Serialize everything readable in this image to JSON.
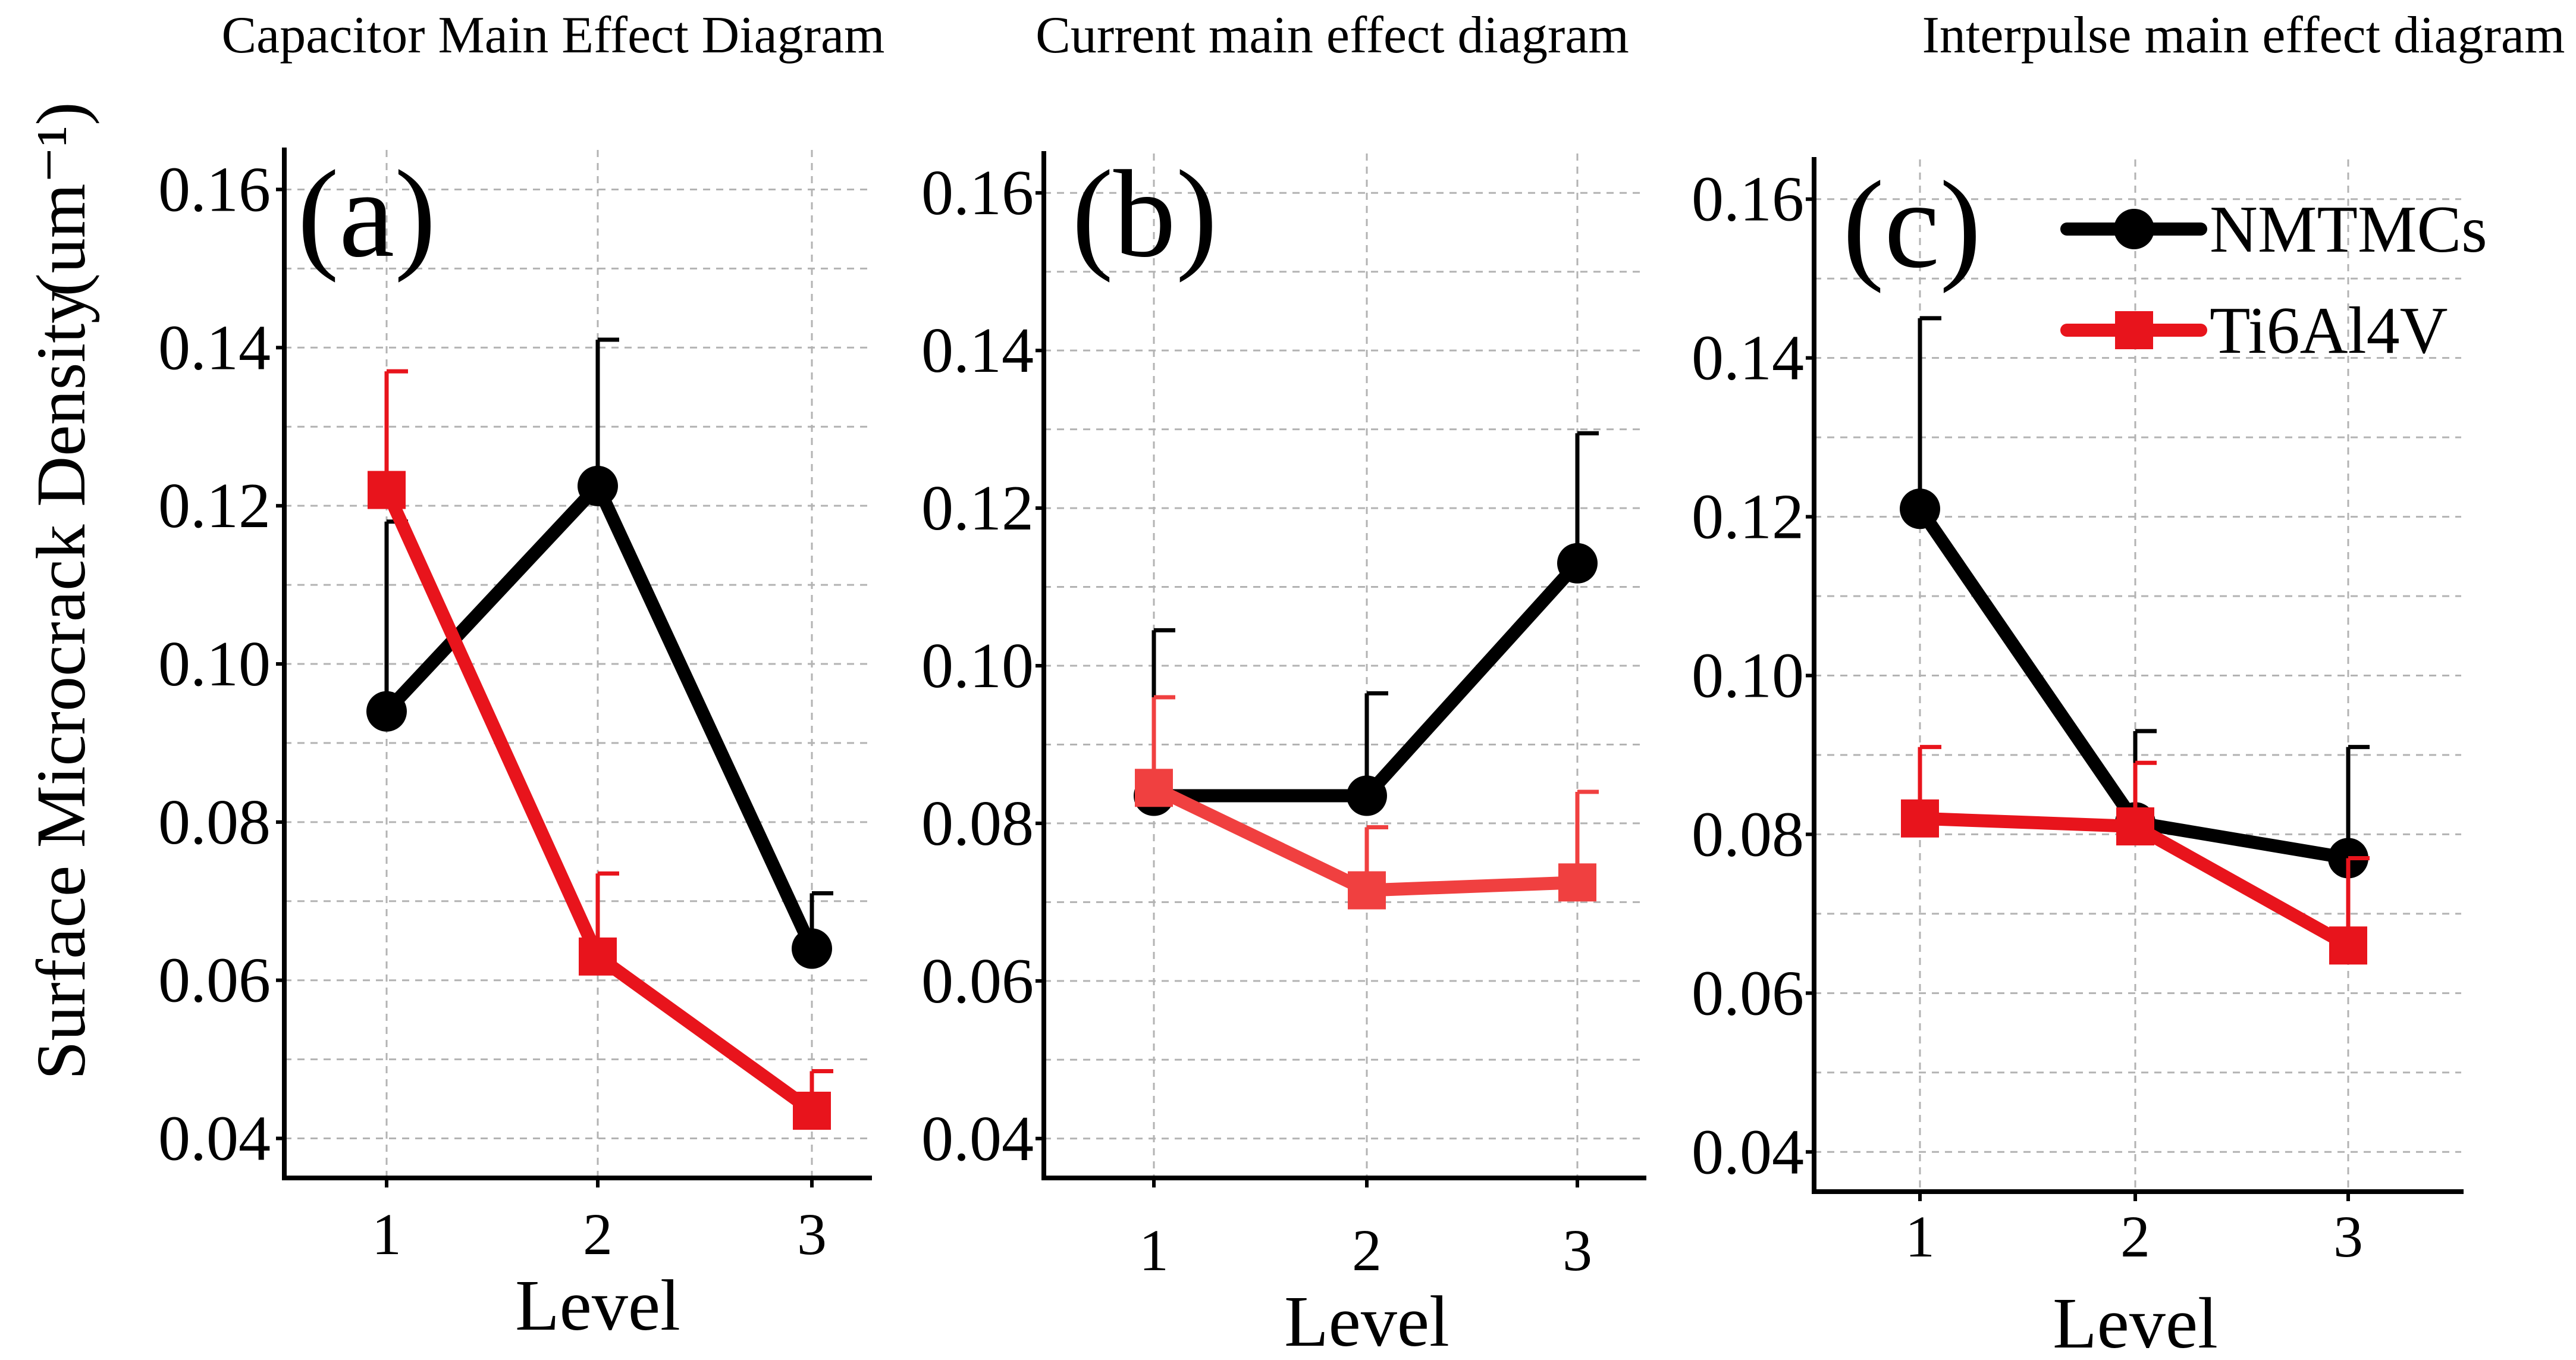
{
  "chart_data": [
    {
      "type": "line",
      "panel_label": "(a)",
      "title": "Capacitor Main Effect Diagram",
      "xlabel": "Level",
      "ylabel": "Surface Microcrack Density",
      "ylabel_unit": "(um⁻¹)",
      "categories": [
        "1",
        "2",
        "3"
      ],
      "ylim": [
        0.035,
        0.165
      ],
      "yticks": [
        "0.04",
        "0.06",
        "0.08",
        "0.10",
        "0.12",
        "0.14",
        "0.16"
      ],
      "grid": true,
      "series": [
        {
          "name": "NMTMCs",
          "color": "#000000",
          "marker": "circle",
          "values": [
            0.094,
            0.1225,
            0.064
          ],
          "err_upper": [
            0.118,
            0.141,
            0.071
          ]
        },
        {
          "name": "Ti6Al4V",
          "color": "#e8141c",
          "marker": "square",
          "values": [
            0.122,
            0.063,
            0.0435
          ],
          "err_upper": [
            0.137,
            0.0735,
            0.0485
          ]
        }
      ]
    },
    {
      "type": "line",
      "panel_label": "(b)",
      "title": "Current main effect diagram",
      "xlabel": "Level",
      "categories": [
        "1",
        "2",
        "3"
      ],
      "ylim": [
        0.035,
        0.165
      ],
      "yticks": [
        "0.04",
        "0.06",
        "0.08",
        "0.10",
        "0.12",
        "0.14",
        "0.16"
      ],
      "grid": true,
      "series": [
        {
          "name": "NMTMCs",
          "color": "#000000",
          "marker": "circle",
          "values": [
            0.0835,
            0.0835,
            0.113
          ],
          "err_upper": [
            0.1045,
            0.0965,
            0.1295
          ]
        },
        {
          "name": "Ti6Al4V",
          "color": "#f04040",
          "marker": "square",
          "values": [
            0.0845,
            0.0715,
            0.0725
          ],
          "err_upper": [
            0.096,
            0.0795,
            0.084
          ]
        }
      ]
    },
    {
      "type": "line",
      "panel_label": "(c)",
      "title": "Interpulse main effect diagram",
      "xlabel": "Level",
      "categories": [
        "1",
        "2",
        "3"
      ],
      "ylim": [
        0.035,
        0.165
      ],
      "yticks": [
        "0.04",
        "0.06",
        "0.08",
        "0.10",
        "0.12",
        "0.14",
        "0.16"
      ],
      "grid": true,
      "legend": {
        "placement": "top-right",
        "entries": [
          "NMTMCs",
          "Ti6Al4V"
        ]
      },
      "series": [
        {
          "name": "NMTMCs",
          "color": "#000000",
          "marker": "circle",
          "values": [
            0.121,
            0.0815,
            0.077
          ],
          "err_upper": [
            0.145,
            0.093,
            0.091
          ]
        },
        {
          "name": "Ti6Al4V",
          "color": "#e8141c",
          "marker": "square",
          "values": [
            0.082,
            0.081,
            0.066
          ],
          "err_upper": [
            0.091,
            0.089,
            0.077
          ]
        }
      ]
    }
  ]
}
